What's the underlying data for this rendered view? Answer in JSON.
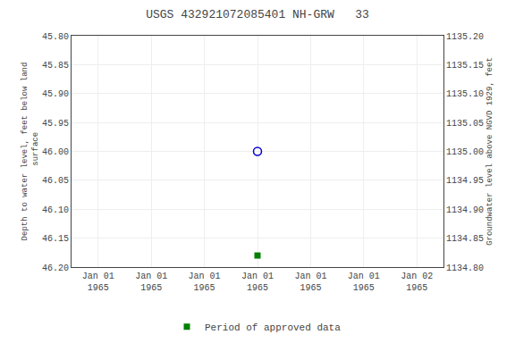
{
  "chart_data": {
    "type": "scatter",
    "title": "USGS 432921072085401 NH-GRW   33",
    "ylabel": "Depth to water level, feet below land\n surface",
    "y2label": "Groundwater level above NGVD 1929, feet",
    "categories": [
      "Jan 01\n1965",
      "Jan 01\n1965",
      "Jan 01\n1965",
      "Jan 01\n1965",
      "Jan 01\n1965",
      "Jan 01\n1965",
      "Jan 02\n1965"
    ],
    "series": [
      {
        "color": "#0000cc",
        "marker": "circle-open",
        "values": [
          null,
          null,
          null,
          46.0,
          null,
          null,
          null
        ]
      },
      {
        "name": "Period of approved data",
        "color": "#008000",
        "marker": "square",
        "values": [
          null,
          null,
          null,
          46.18,
          null,
          null,
          null
        ]
      }
    ],
    "ylim": [
      46.2,
      45.8
    ],
    "yticks": [
      {
        "value": 45.8,
        "label": "45.80"
      },
      {
        "value": 45.85,
        "label": "45.85"
      },
      {
        "value": 45.9,
        "label": "45.90"
      },
      {
        "value": 45.95,
        "label": "45.95"
      },
      {
        "value": 46.0,
        "label": "46.00"
      },
      {
        "value": 46.05,
        "label": "46.05"
      },
      {
        "value": 46.1,
        "label": "46.10"
      },
      {
        "value": 46.15,
        "label": "46.15"
      },
      {
        "value": 46.2,
        "label": "46.20"
      }
    ],
    "y2lim": [
      1134.8,
      1135.2
    ],
    "y2ticks": [
      {
        "value": 1135.2,
        "label": "1135.20"
      },
      {
        "value": 1135.15,
        "label": "1135.15"
      },
      {
        "value": 1135.1,
        "label": "1135.10"
      },
      {
        "value": 1135.05,
        "label": "1135.05"
      },
      {
        "value": 1135.0,
        "label": "1135.00"
      },
      {
        "value": 1134.95,
        "label": "1134.95"
      },
      {
        "value": 1134.9,
        "label": "1134.90"
      },
      {
        "value": 1134.85,
        "label": "1134.85"
      },
      {
        "value": 1134.8,
        "label": "1134.80"
      }
    ],
    "grid": true,
    "legend": "bottom"
  }
}
